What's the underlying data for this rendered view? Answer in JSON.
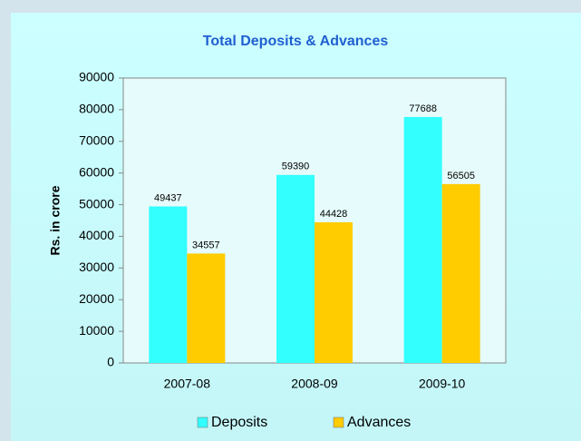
{
  "chart_data": {
    "type": "bar",
    "title": "Total Deposits & Advances",
    "y_label": "Rs. in crore",
    "categories": [
      "2007-08",
      "2008-09",
      "2009-10"
    ],
    "series": [
      {
        "name": "Deposits",
        "color": "#33ffff",
        "values": [
          49437,
          59390,
          77688
        ]
      },
      {
        "name": "Advances",
        "color": "#ffcc00",
        "values": [
          34557,
          44428,
          56505
        ]
      }
    ],
    "ylim": [
      0,
      90000
    ],
    "yticks": [
      0,
      10000,
      20000,
      30000,
      40000,
      50000,
      60000,
      70000,
      80000,
      90000
    ],
    "legend": "bottom"
  }
}
